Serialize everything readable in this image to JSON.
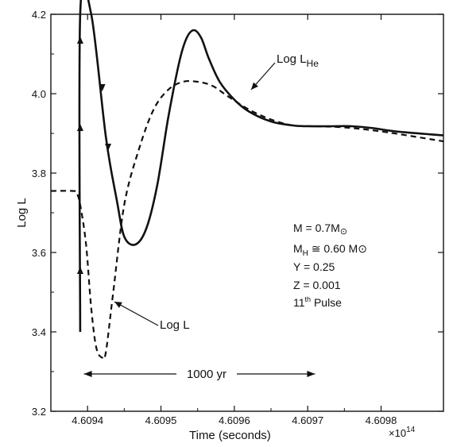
{
  "chart_data": {
    "type": "line",
    "xlabel": "Time (seconds)",
    "ylabel": "Log L",
    "x_multiplier": "×10",
    "x_multiplier_exp": "14",
    "xlim": [
      4.60935,
      4.609885
    ],
    "ylim": [
      3.2,
      4.2
    ],
    "x_ticks": [
      "4.60940",
      "4.60950",
      "4.60960",
      "4.60970",
      "4.60980"
    ],
    "x_tick_labels": [
      "4.6094",
      "4.6095",
      "4.6096",
      "4.6097",
      "4.6098"
    ],
    "y_ticks": [
      3.2,
      3.4,
      3.6,
      3.8,
      4.0,
      4.2
    ],
    "y_tick_labels": [
      "3.2",
      "3.4",
      "3.6",
      "3.8",
      "4.0",
      "4.2"
    ],
    "grid": false,
    "series": [
      {
        "name": "Log L_He",
        "style": "solid",
        "x": [
          4.60939,
          4.60939,
          4.609405,
          4.609425,
          4.60944,
          4.60945,
          4.609465,
          4.60948,
          4.609495,
          4.60951,
          4.609525,
          4.609535,
          4.609545,
          4.609555,
          4.609565,
          4.60958,
          4.6096,
          4.60962,
          4.60965,
          4.60968,
          4.6097,
          4.60973,
          4.60976,
          4.60979,
          4.60982,
          4.609885
        ],
        "y": [
          3.4,
          4.2,
          4.2,
          3.89,
          3.73,
          3.64,
          3.62,
          3.66,
          3.77,
          3.94,
          4.08,
          4.14,
          4.16,
          4.14,
          4.09,
          4.03,
          3.985,
          3.955,
          3.93,
          3.92,
          3.918,
          3.918,
          3.918,
          3.913,
          3.905,
          3.895
        ]
      },
      {
        "name": "Log L",
        "style": "dashed",
        "x": [
          4.60935,
          4.60938,
          4.609385,
          4.60939,
          4.609398,
          4.609405,
          4.609412,
          4.60942,
          4.609425,
          4.609435,
          4.60945,
          4.60947,
          4.60949,
          4.60951,
          4.60953,
          4.60955,
          4.60957,
          4.60959,
          4.60962,
          4.60965,
          4.60968,
          4.60971,
          4.60975,
          4.6098,
          4.609885
        ],
        "y": [
          3.755,
          3.755,
          3.75,
          3.72,
          3.62,
          3.46,
          3.36,
          3.335,
          3.35,
          3.5,
          3.72,
          3.86,
          3.96,
          4.01,
          4.03,
          4.03,
          4.02,
          3.995,
          3.96,
          3.935,
          3.92,
          3.918,
          3.915,
          3.905,
          3.88
        ]
      }
    ],
    "annotations": {
      "lhe_label_main": "Log L",
      "lhe_label_sub": "He",
      "l_label": "Log L",
      "duration_label": "1000 yr",
      "duration_x": [
        4.609395,
        4.60971
      ],
      "duration_y": 3.23
    },
    "parameters": [
      {
        "main": "M = 0.7M",
        "sub": "",
        "symbol": "⊙",
        "rest": ""
      },
      {
        "main": "M",
        "sub": "H",
        "symbol": "",
        "rest": " ≅ 0.60 M⊙"
      },
      {
        "main": "Y = 0.25",
        "sub": "",
        "symbol": "",
        "rest": ""
      },
      {
        "main": "Z = 0.001",
        "sub": "",
        "symbol": "",
        "rest": ""
      },
      {
        "main": "11",
        "sup": "th",
        "symbol": "",
        "rest": " Pulse"
      }
    ]
  }
}
